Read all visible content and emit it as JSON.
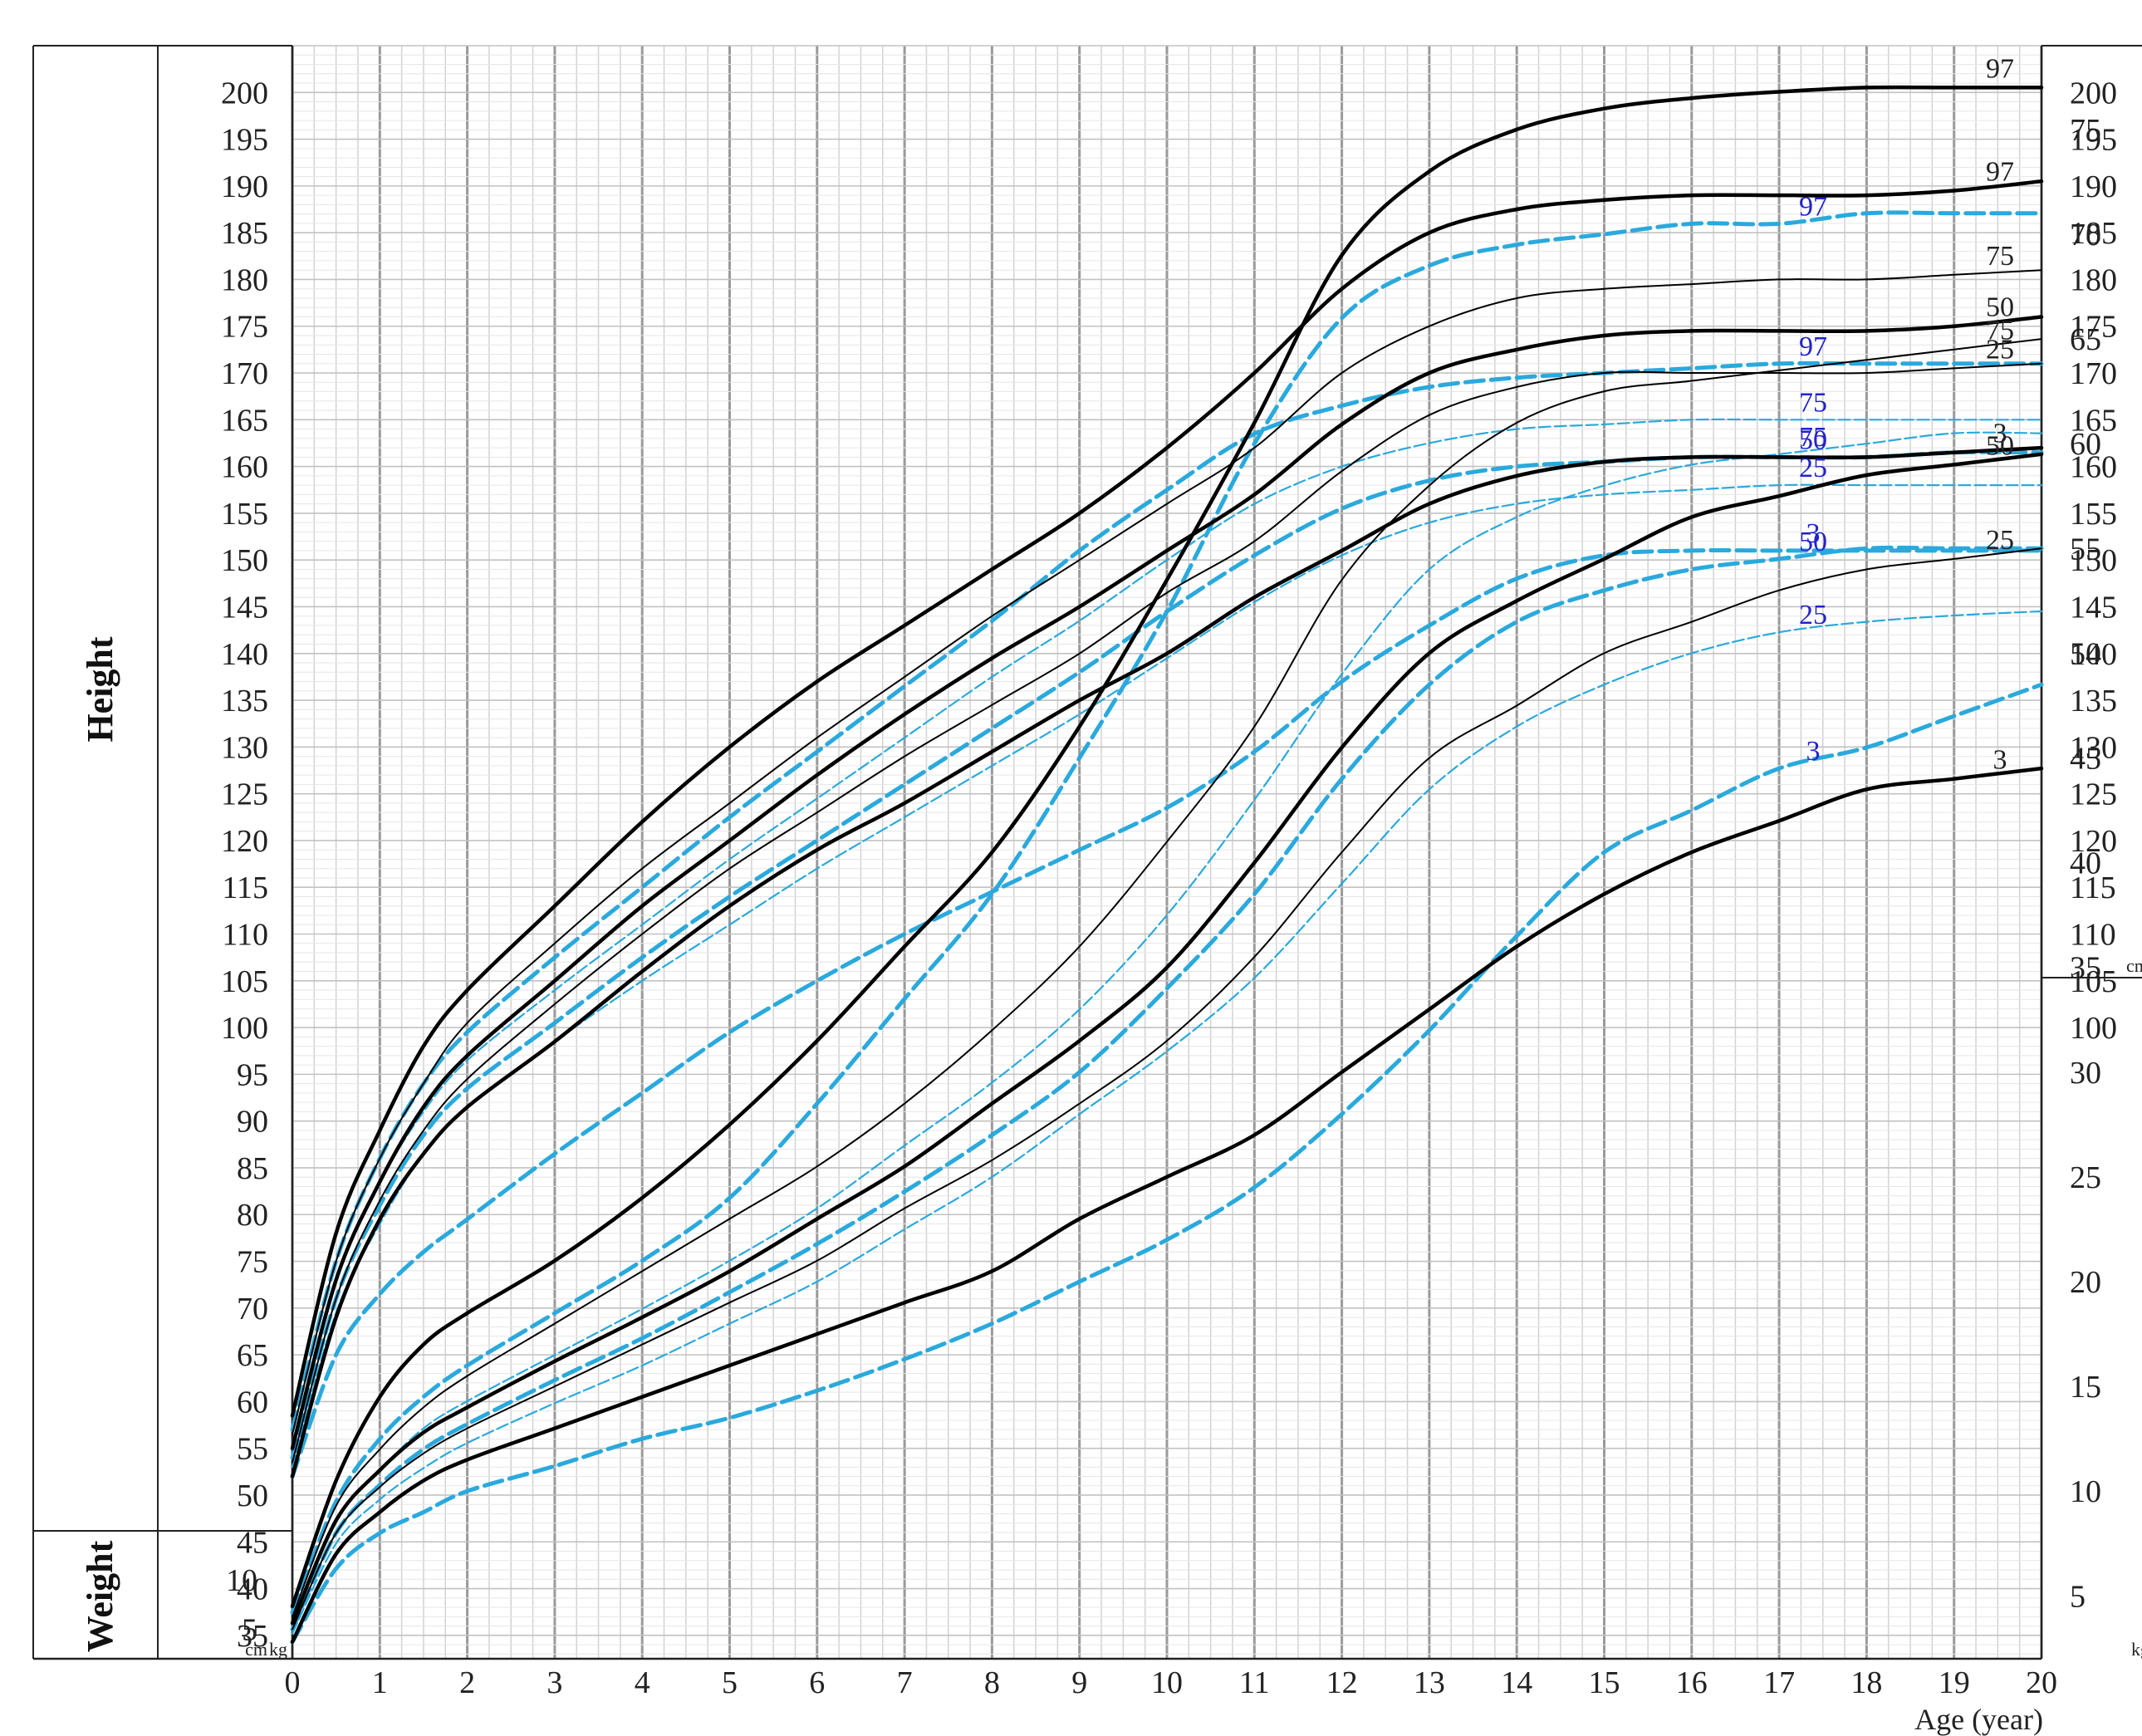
{
  "chart_data": {
    "type": "line",
    "xlabel": "Age (year)",
    "x_ticks": [
      "0",
      "1",
      "2",
      "3",
      "4",
      "5",
      "6",
      "7",
      "8",
      "9",
      "10",
      "11",
      "12",
      "13",
      "14",
      "15",
      "16",
      "17",
      "18",
      "19",
      "20"
    ],
    "xlim": [
      0,
      20
    ],
    "side_labels": {
      "height": "Height",
      "weight": "Weight"
    },
    "units": {
      "cm_left": "cm",
      "kg_left": "kg",
      "cm_right": "cm",
      "kg_right": "kg"
    },
    "height_axis": {
      "ticks": [
        "35",
        "40",
        "45",
        "50",
        "55",
        "60",
        "65",
        "70",
        "75",
        "80",
        "85",
        "90",
        "95",
        "100",
        "105",
        "110",
        "115",
        "120",
        "125",
        "130",
        "135",
        "140",
        "145",
        "150",
        "155",
        "160",
        "165",
        "170",
        "175",
        "180",
        "185",
        "190",
        "195",
        "200"
      ],
      "ylim": [
        32.5,
        205
      ]
    },
    "weight_axis_left": {
      "ticks": [
        "5",
        "10"
      ],
      "ylim": [
        2,
        15
      ]
    },
    "weight_axis_right": {
      "ticks": [
        "5",
        "10",
        "15",
        "20",
        "25",
        "30",
        "35",
        "40",
        "45",
        "50",
        "55",
        "60",
        "65",
        "70",
        "75"
      ],
      "ylim": [
        2,
        79
      ]
    },
    "right_height_ticks": [
      "100",
      "105",
      "110",
      "115",
      "120",
      "125",
      "130",
      "135",
      "140",
      "145",
      "150",
      "155",
      "160",
      "165",
      "170",
      "175",
      "180",
      "185",
      "190",
      "195",
      "200"
    ],
    "ages": [
      0,
      0.5,
      1,
      1.5,
      2,
      3,
      4,
      5,
      6,
      7,
      8,
      9,
      10,
      11,
      12,
      13,
      14,
      15,
      16,
      17,
      18,
      19,
      20
    ],
    "colors": {
      "boys": "#000000",
      "girls": "#2aa9dd",
      "girls_label": "#2222cc"
    },
    "series": [
      {
        "name": "97",
        "group": "boys",
        "measure": "height",
        "values": [
          58.5,
          78,
          89,
          98,
          104,
          113,
          122,
          130,
          137,
          143,
          149,
          155,
          162,
          170,
          179,
          185,
          187.5,
          188.5,
          189,
          189,
          189,
          189.5,
          190.5
        ]
      },
      {
        "name": "75",
        "group": "boys",
        "measure": "height",
        "values": [
          56.5,
          75,
          86,
          94,
          100.5,
          109,
          117,
          124,
          131,
          137.5,
          144,
          150,
          156,
          162,
          170,
          175,
          178,
          179,
          179.5,
          180,
          180,
          180.5,
          181
        ]
      },
      {
        "name": "50",
        "group": "boys",
        "measure": "height",
        "values": [
          55,
          73,
          83.5,
          91.5,
          97,
          105,
          113,
          120,
          127,
          133.5,
          139.5,
          145,
          151,
          157,
          164.5,
          170,
          172.5,
          174,
          174.5,
          174.5,
          174.5,
          175,
          176
        ]
      },
      {
        "name": "25",
        "group": "boys",
        "measure": "height",
        "values": [
          53.5,
          71,
          81.5,
          89,
          94.5,
          102.5,
          110,
          117,
          123,
          129,
          134.5,
          140,
          146.5,
          152,
          159.5,
          165.5,
          168.5,
          170,
          170,
          170,
          170,
          170.5,
          171
        ]
      },
      {
        "name": "3",
        "group": "boys",
        "measure": "height",
        "values": [
          52,
          69,
          79.5,
          86.5,
          91.5,
          98.5,
          106,
          113,
          119,
          124,
          129.5,
          135,
          140,
          146,
          151,
          156,
          159,
          160.5,
          161,
          161,
          161,
          161.5,
          162
        ]
      },
      {
        "name": "97",
        "group": "girls",
        "measure": "height",
        "values": [
          57,
          75,
          86,
          94,
          99.5,
          107.5,
          115,
          122.5,
          129.5,
          136.5,
          143.5,
          151,
          157.5,
          163.5,
          166.5,
          168.5,
          169.5,
          170,
          170.5,
          171,
          171,
          171,
          171
        ]
      },
      {
        "name": "75",
        "group": "girls",
        "measure": "height",
        "values": [
          55.5,
          73,
          83.5,
          91,
          96.5,
          104,
          111,
          118,
          124.5,
          131,
          137.5,
          143.5,
          150,
          156,
          160,
          162.5,
          164,
          164.5,
          165,
          165,
          165,
          165,
          165
        ]
      },
      {
        "name": "50",
        "group": "girls",
        "measure": "height",
        "values": [
          54,
          71,
          81,
          88.5,
          93.5,
          100.5,
          107.5,
          114,
          120,
          126,
          132,
          138,
          144.5,
          150.5,
          155.5,
          158.5,
          160,
          160.5,
          161,
          161,
          161,
          161.5,
          161.5
        ]
      },
      {
        "name": "25",
        "group": "girls",
        "measure": "height",
        "values": [
          53,
          69.5,
          79,
          86.5,
          91.5,
          98.5,
          105,
          111,
          117,
          122.5,
          128,
          133.5,
          139.5,
          145.5,
          150.5,
          154,
          156,
          157,
          157.5,
          158,
          158,
          158,
          158
        ]
      },
      {
        "name": "3",
        "group": "girls",
        "measure": "height",
        "values": [
          52,
          65,
          71.5,
          76,
          79.5,
          86.5,
          93,
          99.5,
          105,
          110,
          114.5,
          119,
          123.5,
          129.5,
          137,
          143,
          148,
          150.5,
          151,
          151,
          151,
          151,
          151
        ]
      },
      {
        "name": "97",
        "group": "boys",
        "measure": "weight",
        "values": [
          4.5,
          10.5,
          14.5,
          17,
          18.5,
          21,
          24,
          27.5,
          31.5,
          36,
          40.5,
          46.5,
          53.5,
          61,
          69,
          73,
          75,
          76,
          76.5,
          76.8,
          77,
          77,
          77
        ]
      },
      {
        "name": "75",
        "group": "boys",
        "measure": "weight",
        "values": [
          4,
          9.3,
          12,
          14,
          15.5,
          18,
          20.5,
          23,
          25.5,
          28.5,
          32,
          36,
          41,
          46.5,
          53.5,
          58,
          61,
          62.5,
          63,
          63.5,
          64,
          64.5,
          65
        ]
      },
      {
        "name": "50",
        "group": "boys",
        "measure": "weight",
        "values": [
          3.7,
          8.6,
          11,
          12.8,
          14,
          16.2,
          18.3,
          20.5,
          23,
          25.5,
          28.5,
          31.5,
          35,
          40,
          45.5,
          50,
          52.5,
          54.5,
          56.5,
          57.5,
          58.5,
          59,
          59.5
        ]
      },
      {
        "name": "25",
        "group": "boys",
        "measure": "weight",
        "values": [
          3.4,
          8,
          10.2,
          11.8,
          13,
          15,
          17,
          19,
          21,
          23.5,
          25.8,
          28.5,
          31.5,
          35.5,
          40.5,
          45,
          47.5,
          50,
          51.5,
          53,
          54,
          54.5,
          55
        ]
      },
      {
        "name": "3",
        "group": "boys",
        "measure": "weight",
        "values": [
          2.8,
          7,
          9,
          10.5,
          11.5,
          13,
          14.5,
          16,
          17.5,
          19,
          20.5,
          23,
          25,
          27,
          30,
          33,
          36,
          38.5,
          40.5,
          42,
          43.5,
          44,
          44.5
        ]
      },
      {
        "name": "97",
        "group": "girls",
        "measure": "weight",
        "values": [
          4.2,
          9.5,
          12.5,
          14.5,
          16,
          18.5,
          21,
          24,
          28.5,
          33.5,
          38.5,
          45,
          52,
          60,
          66,
          68.5,
          69.5,
          70,
          70.5,
          70.5,
          71,
          71,
          71
        ]
      },
      {
        "name": "75",
        "group": "girls",
        "measure": "weight",
        "values": [
          3.7,
          8.6,
          11,
          13,
          14.3,
          16.5,
          18.7,
          21,
          23.5,
          26.5,
          29.5,
          33,
          37.5,
          43,
          49,
          54,
          56.5,
          58,
          59,
          59.5,
          60,
          60.5,
          60.5
        ]
      },
      {
        "name": "50",
        "group": "girls",
        "measure": "weight",
        "values": [
          3.4,
          8,
          10.3,
          12,
          13.2,
          15.3,
          17.3,
          19.5,
          21.8,
          24.3,
          27,
          30,
          34,
          38.5,
          44,
          48.5,
          51.5,
          53,
          54,
          54.5,
          55,
          55,
          55
        ]
      },
      {
        "name": "25",
        "group": "girls",
        "measure": "weight",
        "values": [
          3.2,
          7.5,
          9.6,
          11.1,
          12.3,
          14.2,
          16,
          18,
          20,
          22.5,
          25,
          28,
          31,
          34.5,
          39,
          43.5,
          46.5,
          48.5,
          50,
          51,
          51.5,
          51.8,
          52
        ]
      },
      {
        "name": "3",
        "group": "girls",
        "measure": "weight",
        "values": [
          2.8,
          6.3,
          8,
          9,
          10,
          11.2,
          12.5,
          13.5,
          14.8,
          16.3,
          18,
          20,
          22,
          24.5,
          28,
          32,
          36.5,
          40.5,
          42.5,
          44.5,
          45.5,
          47,
          48.5
        ]
      }
    ]
  }
}
